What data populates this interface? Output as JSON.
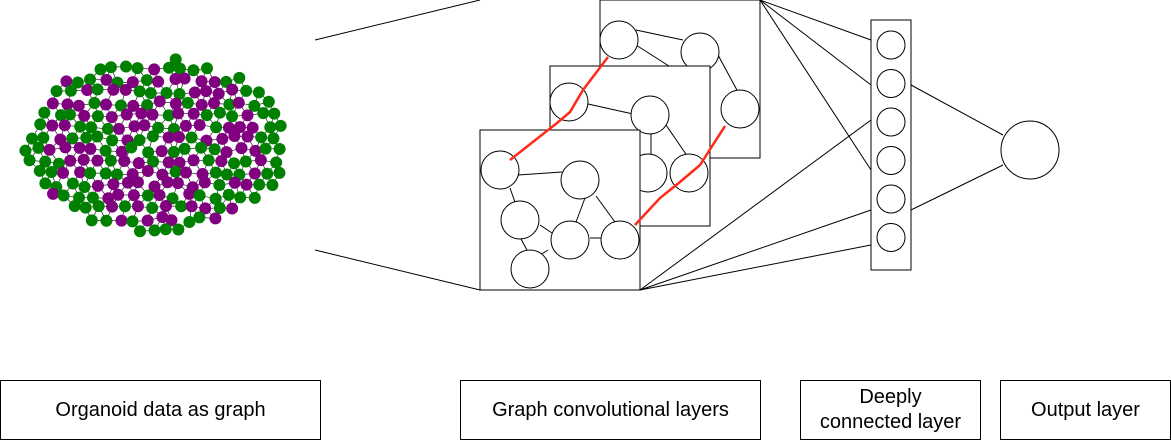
{
  "labels": {
    "organoid_graph": "Organoid data as graph",
    "graph_conv_layers": "Graph convolutional layers",
    "dense_layer_line1": "Deeply",
    "dense_layer_line2": "connected layer",
    "output_layer": "Output layer"
  },
  "colors": {
    "node_green": "#008000",
    "node_purple": "#800080",
    "highlight_edge": "#ff2a1a",
    "stroke": "#000000"
  },
  "dense_layer": {
    "neuron_count": 6
  }
}
